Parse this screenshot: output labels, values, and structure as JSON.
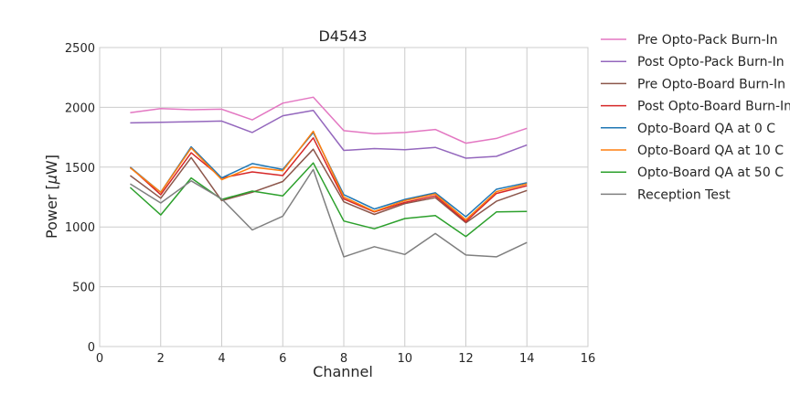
{
  "chart_data": {
    "type": "line",
    "title": "D4543",
    "xlabel": "Channel",
    "ylabel_prefix": "Power [",
    "ylabel_mu": "μ",
    "ylabel_suffix": "W]",
    "xlim": [
      0,
      16
    ],
    "ylim": [
      0,
      2500
    ],
    "xticks": [
      "0",
      "2",
      "4",
      "6",
      "8",
      "10",
      "12",
      "14",
      "16"
    ],
    "yticks": [
      "0",
      "500",
      "1000",
      "1500",
      "2000",
      "2500"
    ],
    "grid": true,
    "legend_position": "right, outside",
    "x": [
      1,
      2,
      3,
      4,
      5,
      6,
      7,
      8,
      9,
      10,
      11,
      12,
      13,
      14
    ],
    "series": [
      {
        "name": "Pre Opto-Pack Burn-In",
        "color": "#e377c2",
        "values": [
          1955,
          1990,
          1980,
          1985,
          1895,
          2035,
          2085,
          1805,
          1780,
          1790,
          1815,
          1700,
          1740,
          1825
        ]
      },
      {
        "name": "Post Opto-Pack Burn-In",
        "color": "#9467bd",
        "values": [
          1870,
          1875,
          1880,
          1885,
          1790,
          1930,
          1975,
          1640,
          1655,
          1645,
          1665,
          1575,
          1590,
          1685
        ]
      },
      {
        "name": "Pre Opto-Board Burn-In",
        "color": "#8c564b",
        "values": [
          1430,
          1240,
          1580,
          1220,
          1290,
          1380,
          1650,
          1210,
          1105,
          1195,
          1245,
          1035,
          1215,
          1305
        ]
      },
      {
        "name": "Post Opto-Board Burn-In",
        "color": "#d62728",
        "values": [
          1500,
          1270,
          1620,
          1410,
          1460,
          1430,
          1745,
          1235,
          1125,
          1205,
          1260,
          1045,
          1280,
          1345
        ]
      },
      {
        "name": "Opto-Board QA at 0 C",
        "color": "#1f77b4",
        "values": [
          1500,
          1290,
          1670,
          1410,
          1530,
          1480,
          1790,
          1270,
          1150,
          1230,
          1285,
          1085,
          1315,
          1370
        ]
      },
      {
        "name": "Opto-Board QA at 10 C",
        "color": "#ff7f0e",
        "values": [
          1495,
          1290,
          1660,
          1395,
          1500,
          1470,
          1800,
          1250,
          1130,
          1220,
          1275,
          1060,
          1295,
          1360
        ]
      },
      {
        "name": "Opto-Board QA at 50 C",
        "color": "#2ca02c",
        "values": [
          1330,
          1100,
          1410,
          1230,
          1300,
          1260,
          1535,
          1050,
          985,
          1070,
          1095,
          920,
          1125,
          1130
        ]
      },
      {
        "name": "Reception Test",
        "color": "#7f7f7f",
        "values": [
          1360,
          1200,
          1385,
          1235,
          975,
          1090,
          1480,
          750,
          835,
          770,
          945,
          765,
          750,
          870
        ]
      }
    ]
  }
}
